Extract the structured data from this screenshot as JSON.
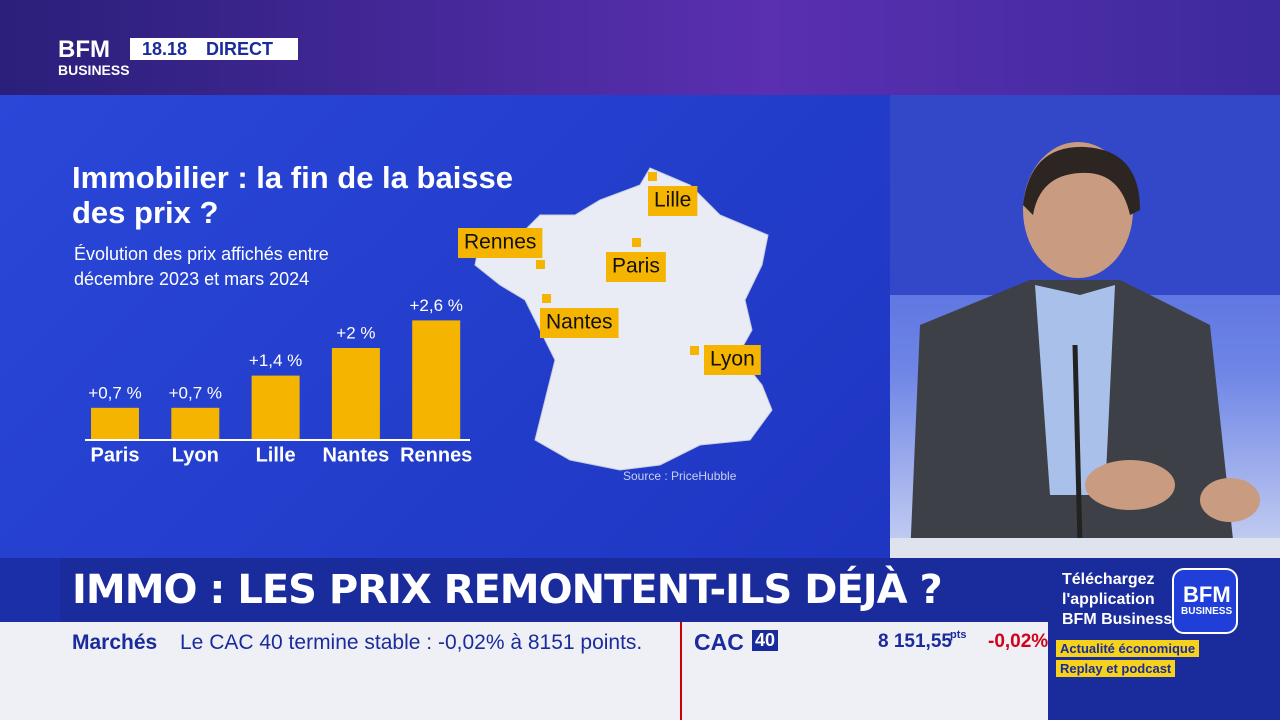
{
  "header": {
    "logo_top": "BFM",
    "logo_bottom": "BUSINESS",
    "time": "18.18",
    "live": "DIRECT"
  },
  "chart_data": {
    "type": "bar",
    "title": "Immobilier : la fin de la baisse des prix ?",
    "subtitle": "Évolution des prix affichés entre décembre 2023 et mars 2024",
    "categories": [
      "Paris",
      "Lyon",
      "Lille",
      "Nantes",
      "Rennes"
    ],
    "values": [
      0.7,
      0.7,
      1.4,
      2,
      2.6
    ],
    "value_labels": [
      "+0,7 %",
      "+0,7 %",
      "+1,4 %",
      "+2 %",
      "+2,6 %"
    ],
    "color": "#f5b400",
    "source": "Source : PriceHubble"
  },
  "map": {
    "cities": [
      "Lille",
      "Rennes",
      "Paris",
      "Nantes",
      "Lyon"
    ]
  },
  "headline": "IMMO : LES PRIX REMONTENT-ILS DÉJÀ ?",
  "ticker": {
    "section": "Marchés",
    "text": "Le CAC 40 termine stable : -0,02% à 8151 points.",
    "index": "CAC",
    "index_num": "40",
    "value": "8 151,55",
    "unit": "pts",
    "change": "-0,02%"
  },
  "promo": {
    "line1": "Téléchargez",
    "line2": "l'application",
    "line3": "BFM Business",
    "logo_top": "BFM",
    "logo_bottom": "BUSINESS",
    "tag1": "Actualité économique",
    "tag2": "Replay et podcast"
  }
}
